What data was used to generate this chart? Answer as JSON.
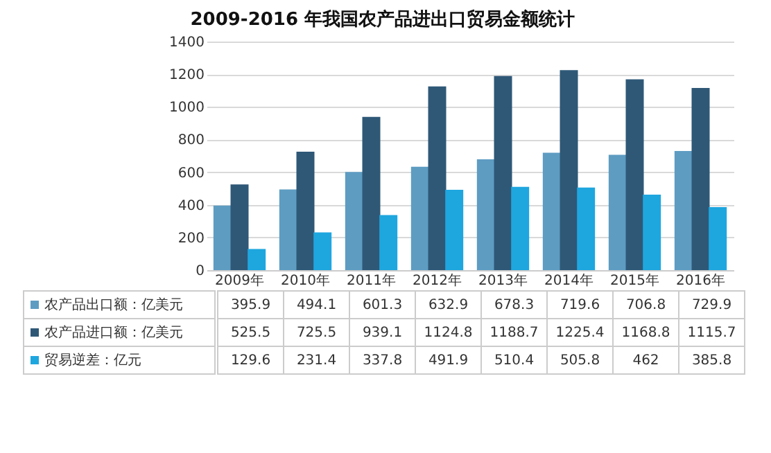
{
  "chart_data": {
    "type": "bar",
    "title": "2009-2016 年我国农产品进出口贸易金额统计",
    "categories": [
      "2009年",
      "2010年",
      "2011年",
      "2012年",
      "2013年",
      "2014年",
      "2015年",
      "2016年"
    ],
    "series": [
      {
        "name": "农产品出口额：亿美元",
        "color": "#5e9cc2",
        "values": [
          395.9,
          494.1,
          601.3,
          632.9,
          678.3,
          719.6,
          706.8,
          729.9
        ]
      },
      {
        "name": "农产品进口额：亿美元",
        "color": "#2f5877",
        "values": [
          525.5,
          725.5,
          939.1,
          1124.8,
          1188.7,
          1225.4,
          1168.8,
          1115.7
        ]
      },
      {
        "name": "贸易逆差：亿元",
        "color": "#1ea6df",
        "values": [
          129.6,
          231.4,
          337.8,
          491.9,
          510.4,
          505.8,
          462,
          385.8
        ]
      }
    ],
    "ylim": [
      0,
      1400
    ],
    "yticks": [
      0,
      200,
      400,
      600,
      800,
      1000,
      1200,
      1400
    ],
    "grid": "y",
    "legend": "bottom left",
    "data_labels": true
  }
}
